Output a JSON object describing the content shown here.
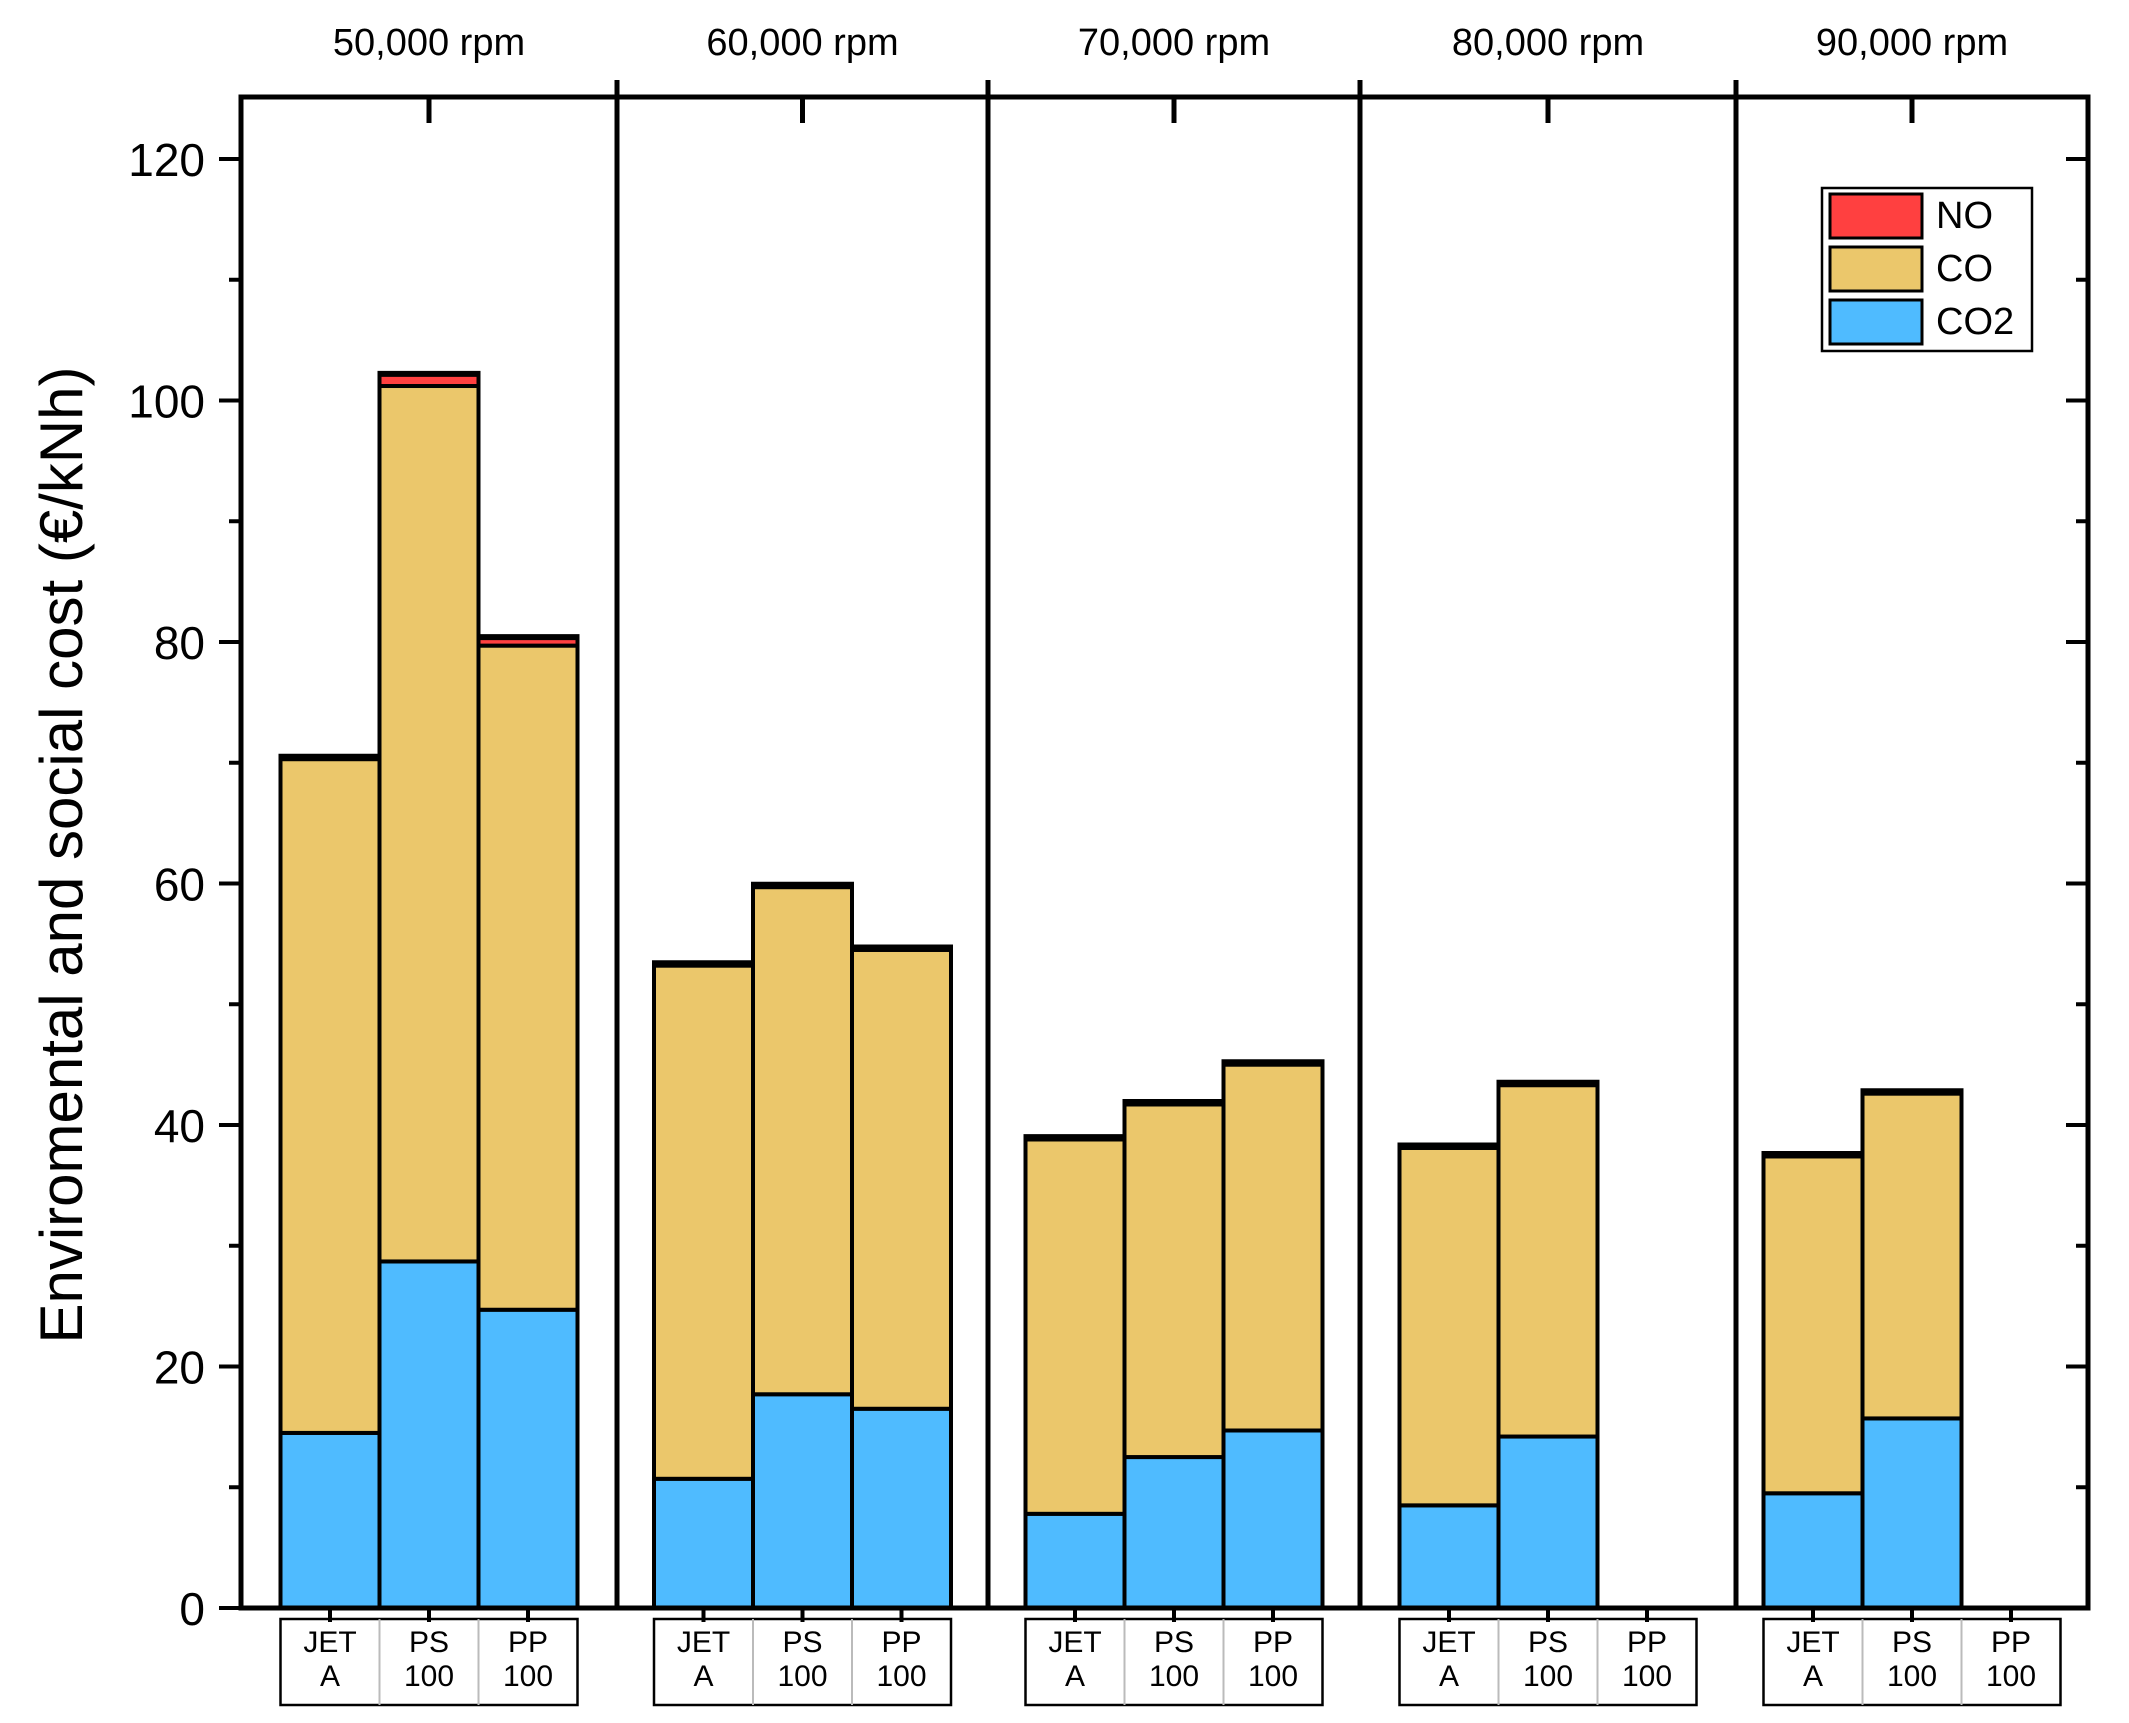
{
  "chart_data": {
    "type": "bar",
    "stacked": true,
    "ylabel": "Enviromental and social cost (€/kNh)",
    "ylim": [
      0,
      125
    ],
    "yticks": [
      0,
      20,
      40,
      60,
      80,
      100,
      120
    ],
    "groups": [
      "50,000 rpm",
      "60,000 rpm",
      "70,000 rpm",
      "80,000 rpm",
      "90,000 rpm"
    ],
    "fuels": [
      {
        "line1": "JET",
        "line2": "A"
      },
      {
        "line1": "PS",
        "line2": "100"
      },
      {
        "line1": "PP",
        "line2": "100"
      }
    ],
    "series": [
      {
        "name": "CO2",
        "color": "#4fbbff",
        "values": [
          [
            14.5,
            28.7,
            24.7
          ],
          [
            10.7,
            17.7,
            16.5
          ],
          [
            7.8,
            12.5,
            14.7
          ],
          [
            8.5,
            14.2,
            null
          ],
          [
            9.5,
            15.7,
            null
          ]
        ]
      },
      {
        "name": "CO",
        "color": "#ebc76b",
        "values": [
          [
            55.8,
            72.5,
            55.0
          ],
          [
            42.5,
            42.0,
            38.0
          ],
          [
            31.0,
            29.2,
            30.3
          ],
          [
            29.6,
            29.1,
            null
          ],
          [
            27.9,
            26.9,
            null
          ]
        ]
      },
      {
        "name": "NO",
        "color": "#ff4040",
        "values": [
          [
            0.2,
            1.0,
            0.7
          ],
          [
            0.2,
            0.2,
            0.2
          ],
          [
            0.2,
            0.2,
            0.2
          ],
          [
            0.2,
            0.2,
            null
          ],
          [
            0.2,
            0.2,
            null
          ]
        ]
      }
    ],
    "legend": {
      "position": "top-right",
      "order": [
        "NO",
        "CO",
        "CO2"
      ]
    }
  }
}
